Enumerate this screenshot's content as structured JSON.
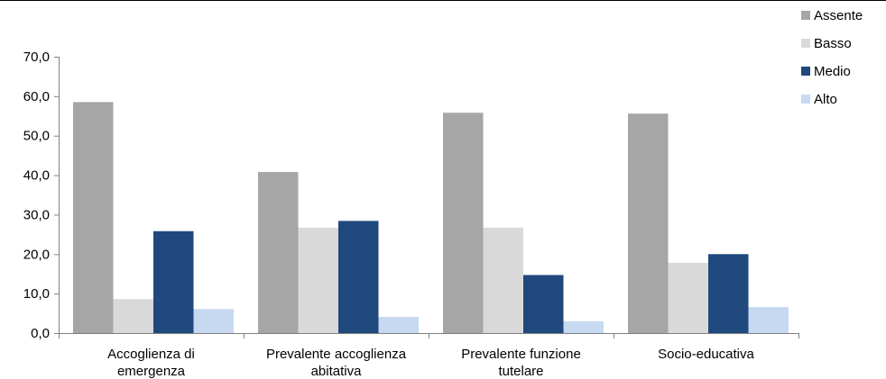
{
  "chart_data": {
    "type": "bar",
    "categories": [
      [
        "Accoglienza di",
        "emergenza"
      ],
      [
        "Prevalente accoglienza",
        "abitativa"
      ],
      [
        "Prevalente funzione",
        "tutelare"
      ],
      [
        "Socio-educativa"
      ]
    ],
    "series": [
      {
        "name": "Assente",
        "color": "#a6a6a6",
        "values": [
          58.5,
          40.8,
          55.8,
          55.6
        ]
      },
      {
        "name": "Basso",
        "color": "#d9d9d9",
        "values": [
          8.6,
          26.7,
          26.7,
          17.8
        ]
      },
      {
        "name": "Medio",
        "color": "#1f497d",
        "values": [
          25.8,
          28.4,
          14.7,
          20.0
        ]
      },
      {
        "name": "Alto",
        "color": "#c6d9f1",
        "values": [
          6.1,
          4.1,
          3.0,
          6.6
        ]
      }
    ],
    "yticks": [
      "0,0",
      "10,0",
      "20,0",
      "30,0",
      "40,0",
      "50,0",
      "60,0",
      "70,0"
    ],
    "ylim": [
      0,
      70
    ],
    "title": "",
    "xlabel": "",
    "ylabel": "",
    "grid": false,
    "legend_position": "top-right"
  }
}
